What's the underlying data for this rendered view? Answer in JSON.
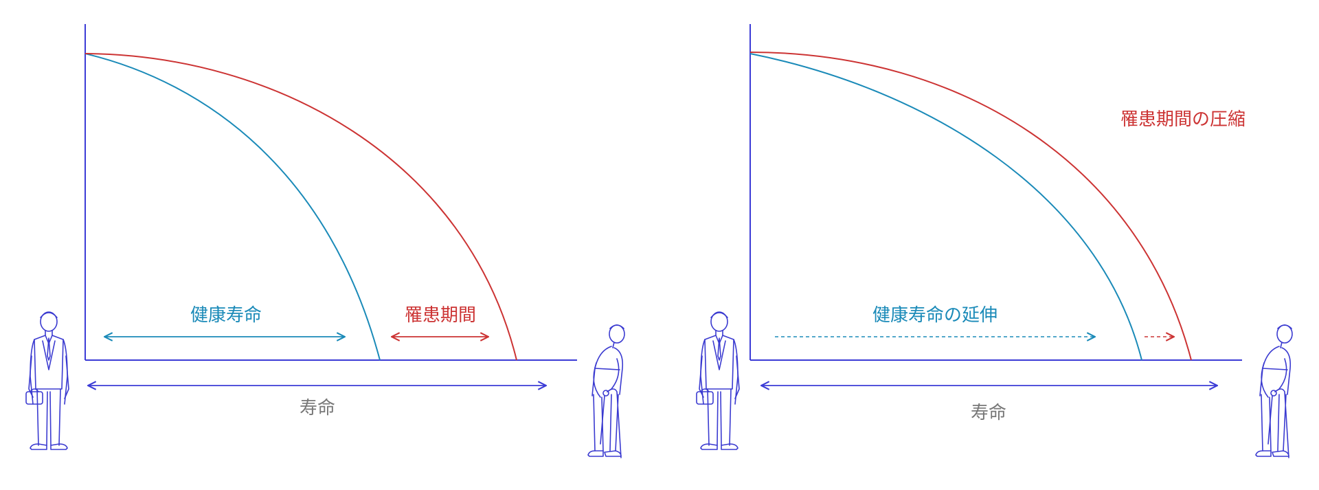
{
  "colors": {
    "axis": "#3b3bd6",
    "healthy": "#1a8ab8",
    "illness": "#cc3333",
    "text_gray": "#777777"
  },
  "panel_left": {
    "label_healthy": "健康寿命",
    "label_illness": "罹患期間",
    "label_lifespan": "寿命"
  },
  "panel_right": {
    "label_healthy": "健康寿命の延伸",
    "label_compression": "罹患期間の圧縮",
    "label_lifespan": "寿命"
  },
  "icons": [
    "businessman-icon",
    "elderly-man-with-cane-icon"
  ]
}
